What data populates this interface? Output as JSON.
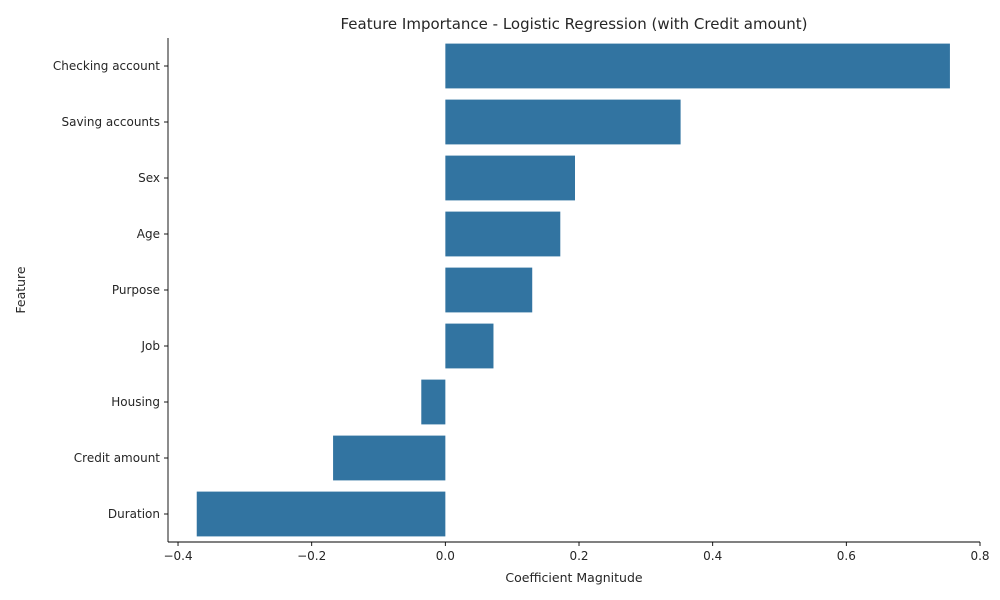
{
  "chart_data": {
    "type": "bar",
    "orientation": "horizontal",
    "title": "Feature Importance - Logistic Regression (with Credit amount)",
    "xlabel": "Coefficient Magnitude",
    "ylabel": "Feature",
    "categories": [
      "Checking account",
      "Saving accounts",
      "Sex",
      "Age",
      "Purpose",
      "Job",
      "Housing",
      "Credit amount",
      "Duration"
    ],
    "values": [
      0.755,
      0.352,
      0.194,
      0.172,
      0.13,
      0.072,
      -0.036,
      -0.168,
      -0.372
    ],
    "xlim": [
      -0.415,
      0.8
    ],
    "xticks": [
      -0.4,
      -0.2,
      0.0,
      0.2,
      0.4,
      0.6,
      0.8
    ],
    "xtick_labels": [
      "−0.4",
      "−0.2",
      "0.0",
      "0.2",
      "0.4",
      "0.6",
      "0.8"
    ],
    "bar_color": "#3274a1",
    "grid": false,
    "legend": "none"
  }
}
